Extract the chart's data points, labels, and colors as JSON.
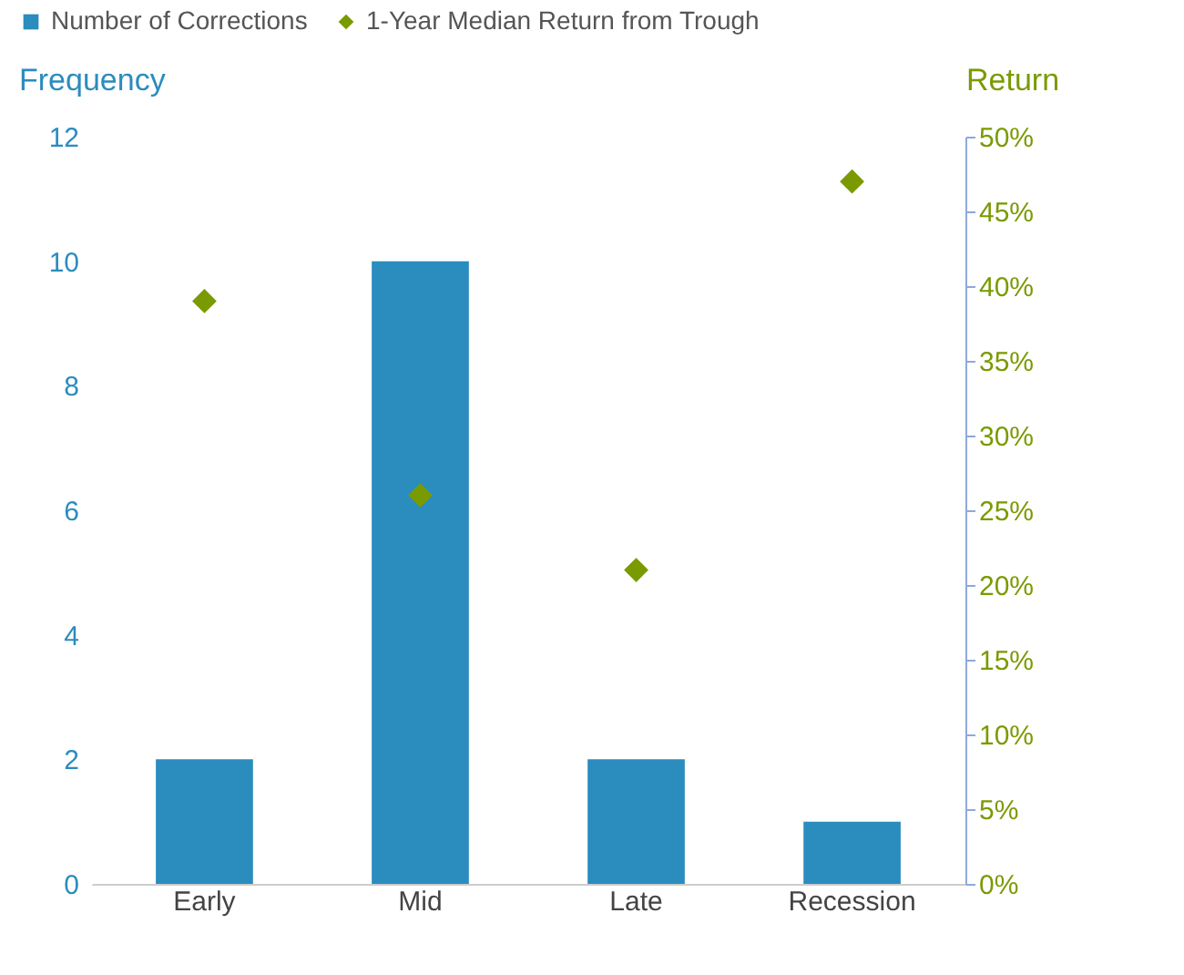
{
  "chart_data": {
    "type": "bar",
    "categories": [
      "Early",
      "Mid",
      "Late",
      "Recession"
    ],
    "ylabel": "Frequency",
    "y2label": "Return",
    "ylim": [
      0,
      12
    ],
    "yticks": [
      0,
      2,
      4,
      6,
      8,
      10,
      12
    ],
    "y2lim": [
      0,
      50
    ],
    "y2ticks": [
      {
        "value": 0,
        "label": "0%"
      },
      {
        "value": 5,
        "label": "5%"
      },
      {
        "value": 10,
        "label": "10%"
      },
      {
        "value": 15,
        "label": "15%"
      },
      {
        "value": 20,
        "label": "20%"
      },
      {
        "value": 25,
        "label": "25%"
      },
      {
        "value": 30,
        "label": "30%"
      },
      {
        "value": 35,
        "label": "35%"
      },
      {
        "value": 40,
        "label": "40%"
      },
      {
        "value": 45,
        "label": "45%"
      },
      {
        "value": 50,
        "label": "50%"
      }
    ],
    "series": [
      {
        "name": "Number of Corrections",
        "color": "#2b8cbe",
        "values": [
          2,
          10,
          2,
          1
        ]
      },
      {
        "name": "1-Year Median Return from Trough",
        "color": "#7a9a01",
        "type": "scatter",
        "axis": "y2",
        "marker": "diamond",
        "values": [
          39,
          26,
          21,
          47
        ]
      }
    ],
    "legend": "top left",
    "grid": false
  }
}
